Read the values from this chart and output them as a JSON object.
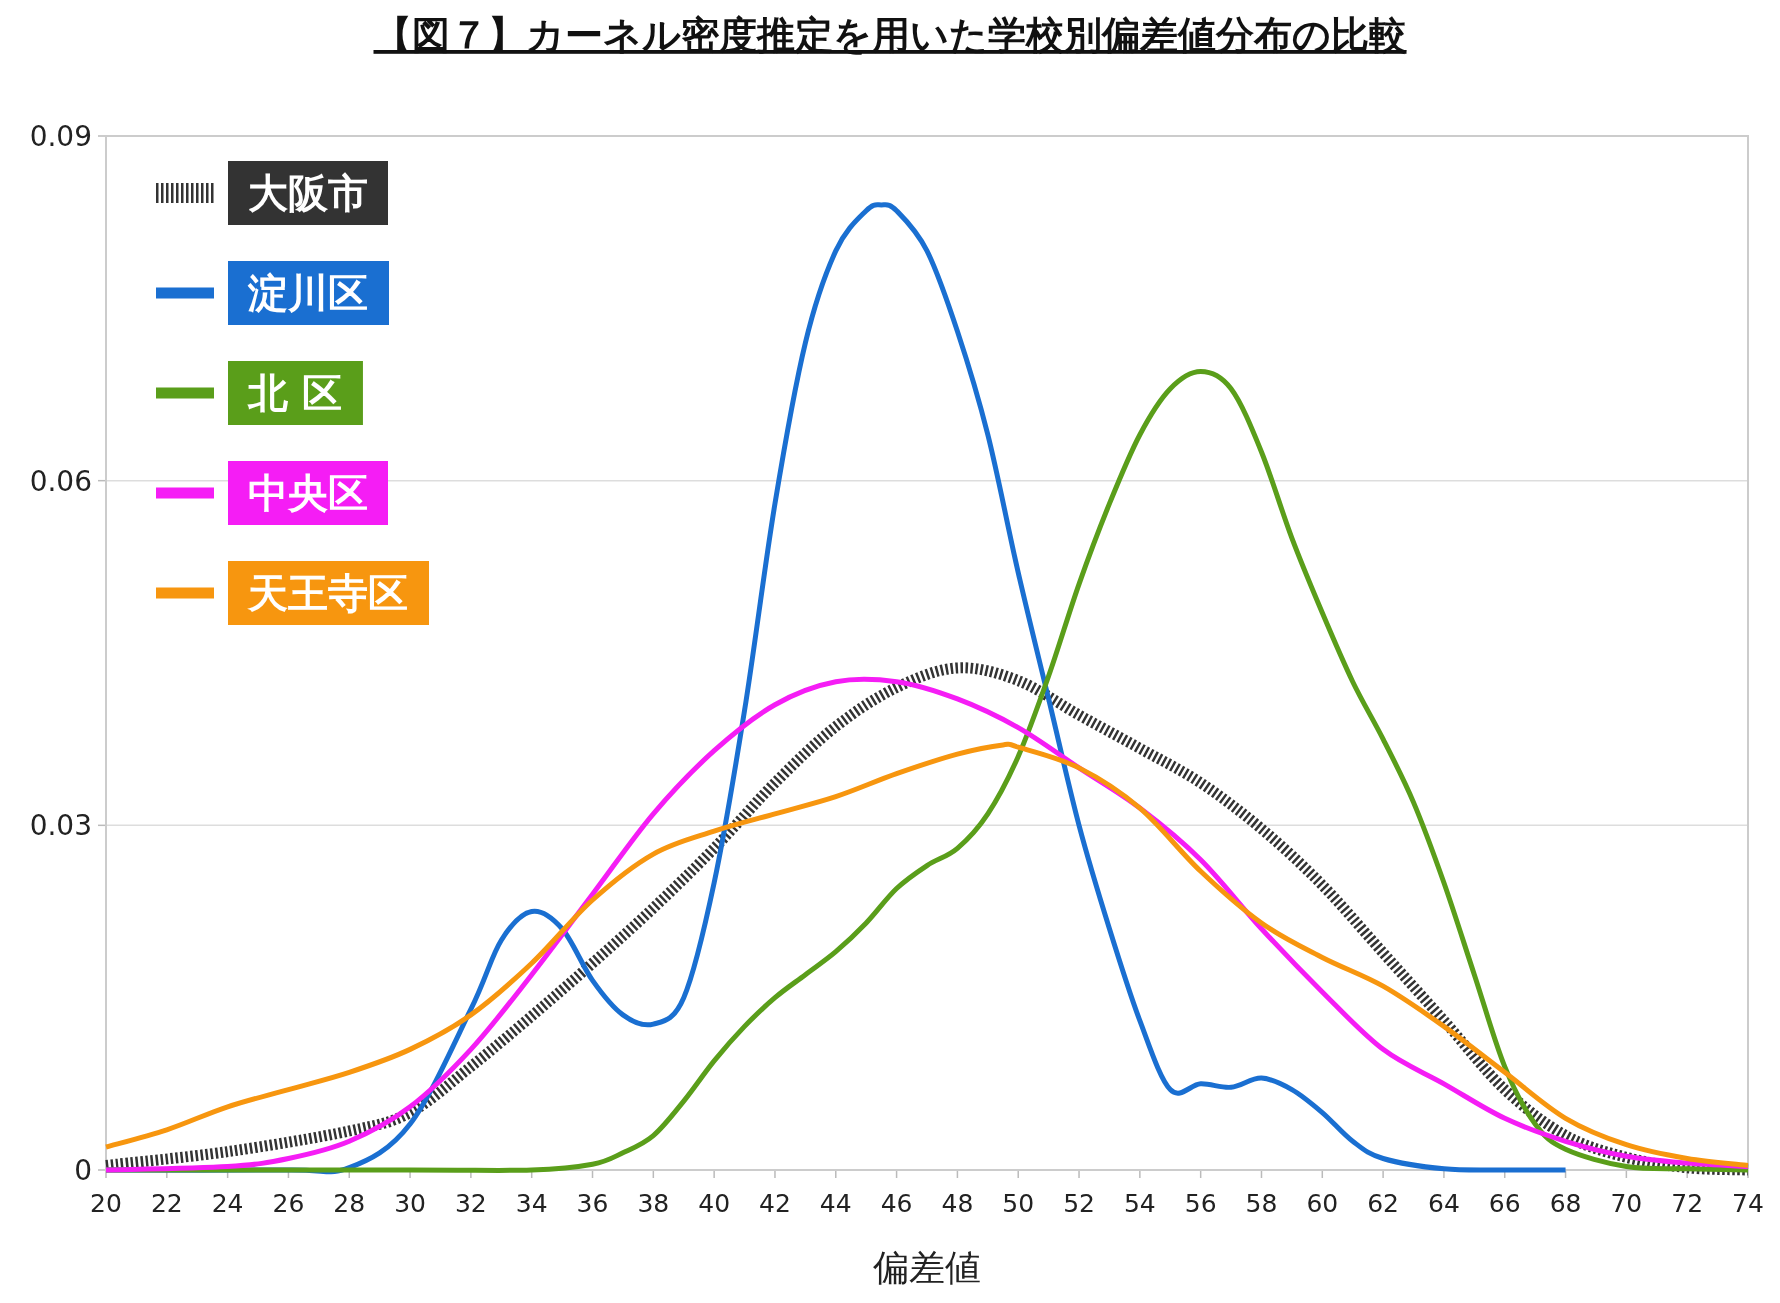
{
  "chart_data": {
    "type": "line",
    "title": "【図７】カーネル密度推定を用いた学校別偏差値分布の比較",
    "xlabel": "偏差値",
    "xlim": [
      20,
      74
    ],
    "xticks": [
      20,
      22,
      24,
      26,
      28,
      30,
      32,
      34,
      36,
      38,
      40,
      42,
      44,
      46,
      48,
      50,
      52,
      54,
      56,
      58,
      60,
      62,
      64,
      66,
      68,
      70,
      72,
      74
    ],
    "ylim": [
      0,
      0.09
    ],
    "yticks": [
      0,
      0.03,
      0.06,
      0.09
    ],
    "grid": "y",
    "legend": "top left",
    "series": [
      {
        "name": "大阪市",
        "color": "#333333",
        "line_style": "dotted",
        "x": [
          20,
          24,
          28,
          30,
          32,
          34,
          36,
          38,
          40,
          42,
          44,
          46,
          48,
          50,
          52,
          54,
          56,
          58,
          60,
          62,
          64,
          66,
          68,
          70,
          72,
          74
        ],
        "values": [
          0.0004,
          0.0016,
          0.0034,
          0.005,
          0.009,
          0.0134,
          0.018,
          0.0228,
          0.028,
          0.0337,
          0.0386,
          0.042,
          0.0437,
          0.0426,
          0.0396,
          0.0367,
          0.0337,
          0.0297,
          0.0248,
          0.0189,
          0.013,
          0.007,
          0.003,
          0.0011,
          0.0002,
          0
        ]
      },
      {
        "name": "淀川区",
        "color": "#1a6fd1",
        "line_style": "solid",
        "x": [
          20,
          26,
          28,
          30,
          32,
          33,
          34,
          35,
          36,
          37,
          38,
          39,
          40,
          41,
          42,
          43,
          44,
          45,
          45.5,
          46,
          47,
          48,
          49,
          50,
          51,
          52,
          53,
          54,
          55,
          56,
          57,
          58,
          59,
          60,
          61,
          62,
          64,
          66,
          68
        ],
        "values": [
          0,
          0,
          0.0002,
          0.004,
          0.014,
          0.02,
          0.0225,
          0.021,
          0.0165,
          0.0135,
          0.0127,
          0.015,
          0.025,
          0.04,
          0.058,
          0.072,
          0.08,
          0.0835,
          0.084,
          0.0835,
          0.08,
          0.073,
          0.064,
          0.052,
          0.041,
          0.03,
          0.021,
          0.013,
          0.007,
          0.0075,
          0.0072,
          0.008,
          0.007,
          0.005,
          0.0025,
          0.001,
          0.0001,
          0,
          0
        ]
      },
      {
        "name": "北 区",
        "color": "#5a9e1a",
        "line_style": "solid",
        "x": [
          20,
          30,
          34,
          36,
          37,
          38,
          39,
          40,
          41,
          42,
          43,
          44,
          45,
          46,
          47,
          48,
          49,
          50,
          51,
          52,
          53,
          54,
          55,
          56,
          57,
          58,
          59,
          60,
          61,
          62,
          63,
          64,
          65,
          66,
          67,
          68,
          70,
          72,
          74
        ],
        "values": [
          0,
          0,
          0,
          0.0005,
          0.0015,
          0.003,
          0.006,
          0.0095,
          0.0125,
          0.015,
          0.017,
          0.019,
          0.0215,
          0.0245,
          0.0265,
          0.028,
          0.031,
          0.036,
          0.043,
          0.051,
          0.058,
          0.064,
          0.068,
          0.0695,
          0.068,
          0.0625,
          0.055,
          0.0485,
          0.0425,
          0.0375,
          0.032,
          0.025,
          0.017,
          0.009,
          0.004,
          0.0018,
          0.0003,
          0.0001,
          0
        ]
      },
      {
        "name": "中央区",
        "color": "#f51df5",
        "line_style": "solid",
        "x": [
          20,
          24,
          26,
          28,
          30,
          32,
          34,
          36,
          38,
          40,
          42,
          44,
          46,
          48,
          50,
          52,
          54,
          56,
          58,
          60,
          62,
          64,
          66,
          68,
          70,
          72,
          74
        ],
        "values": [
          0,
          0.0003,
          0.001,
          0.0025,
          0.0055,
          0.0105,
          0.017,
          0.024,
          0.031,
          0.0365,
          0.0405,
          0.0425,
          0.0425,
          0.041,
          0.0385,
          0.035,
          0.0315,
          0.027,
          0.021,
          0.0155,
          0.0105,
          0.0075,
          0.0045,
          0.0025,
          0.0012,
          0.0006,
          0.0003
        ]
      },
      {
        "name": "天王寺区",
        "color": "#f7960f",
        "line_style": "solid",
        "x": [
          20,
          22,
          24,
          26,
          28,
          30,
          32,
          34,
          36,
          38,
          40,
          42,
          44,
          46,
          48,
          49.5,
          50,
          52,
          54,
          56,
          58,
          60,
          62,
          64,
          66,
          68,
          70,
          72,
          74
        ],
        "values": [
          0.002,
          0.0035,
          0.0055,
          0.007,
          0.0085,
          0.0105,
          0.0135,
          0.018,
          0.0235,
          0.0275,
          0.0295,
          0.031,
          0.0325,
          0.0345,
          0.0362,
          0.037,
          0.0368,
          0.035,
          0.0315,
          0.026,
          0.0215,
          0.0185,
          0.016,
          0.0125,
          0.0085,
          0.0045,
          0.0022,
          0.001,
          0.0004
        ]
      }
    ]
  }
}
